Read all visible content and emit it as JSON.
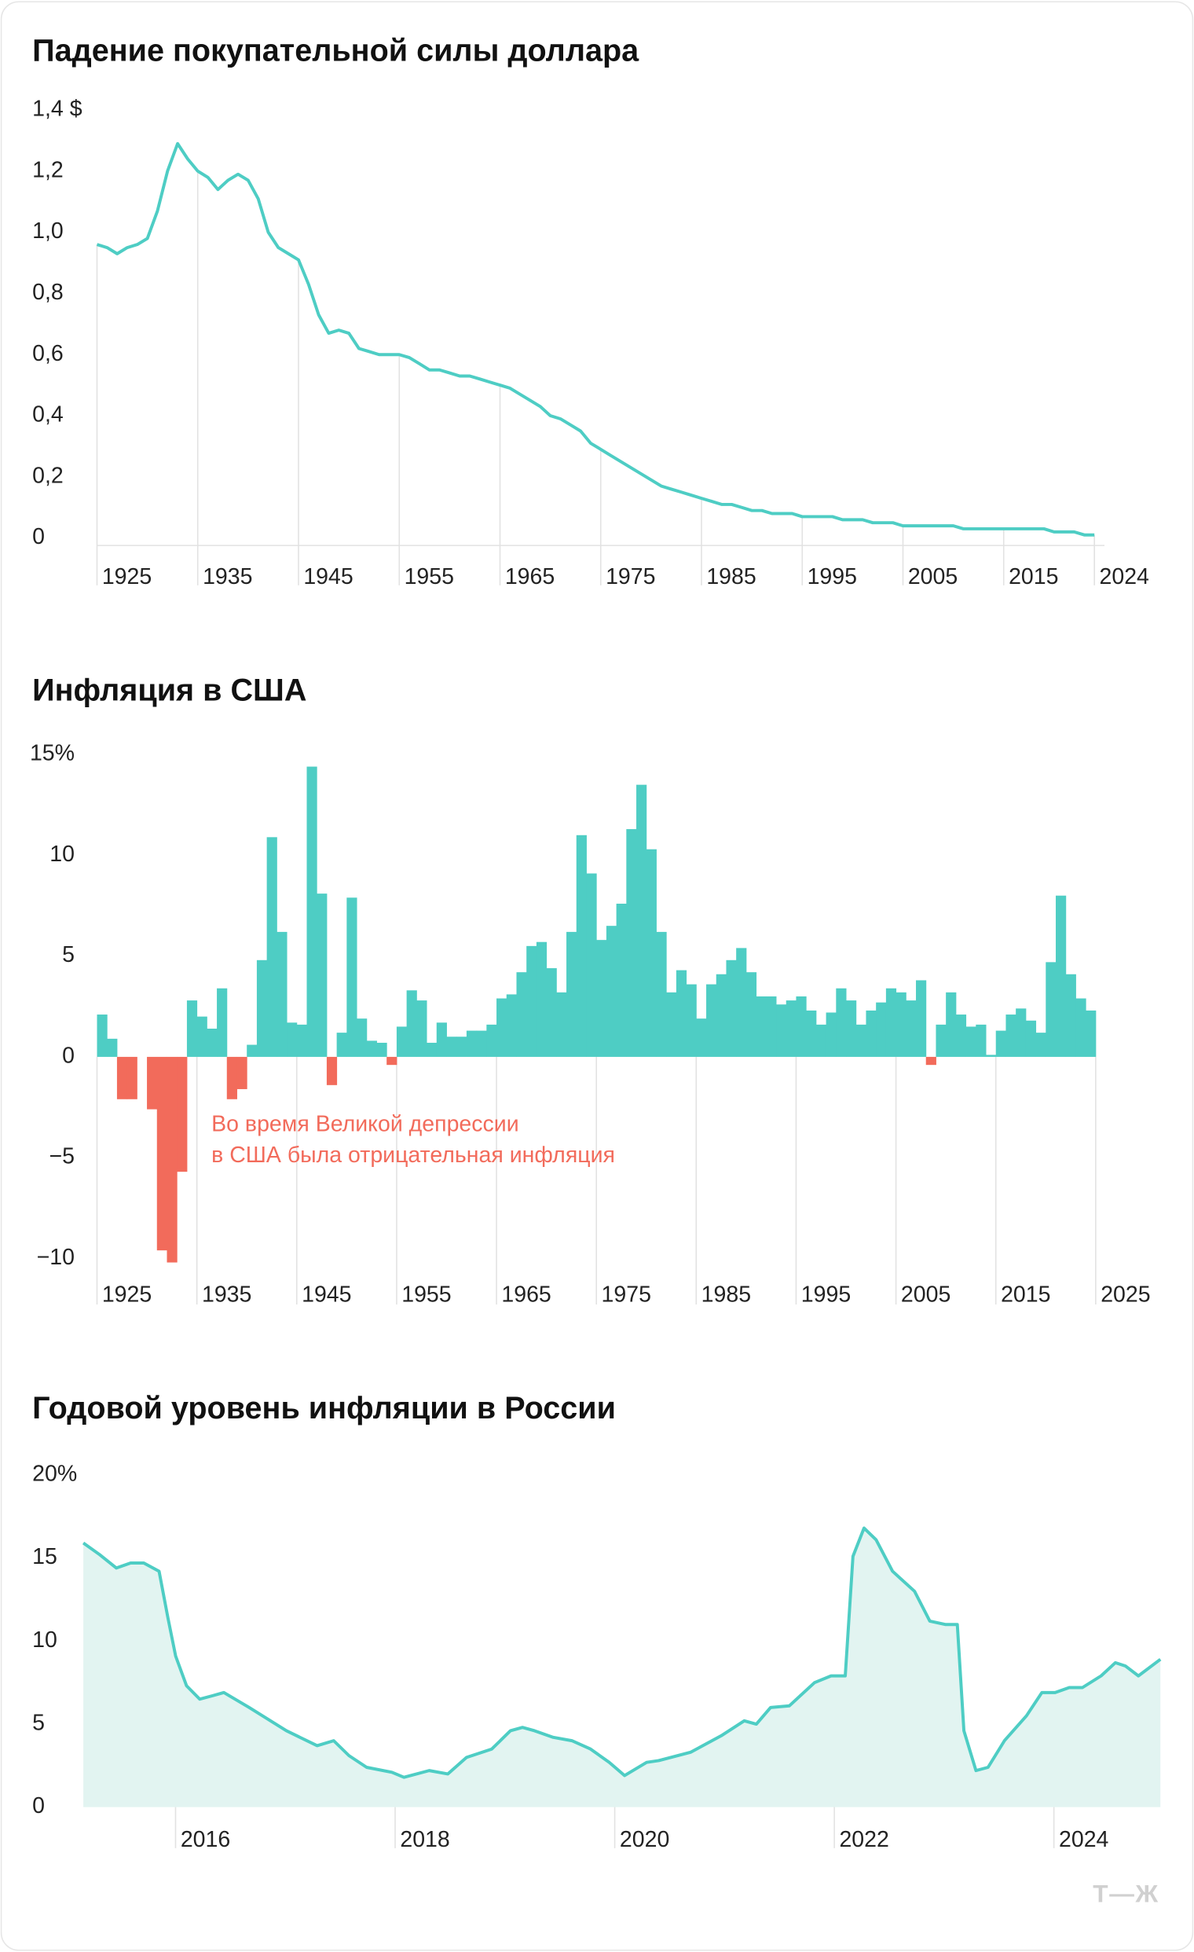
{
  "chart_data": [
    {
      "type": "line",
      "title": "Падение покупательной силы доллара",
      "color": "#4ecdc4",
      "x": [
        1925,
        1926,
        1927,
        1928,
        1929,
        1930,
        1931,
        1932,
        1933,
        1934,
        1935,
        1936,
        1937,
        1938,
        1939,
        1940,
        1941,
        1942,
        1943,
        1944,
        1945,
        1946,
        1947,
        1948,
        1949,
        1950,
        1951,
        1952,
        1953,
        1954,
        1955,
        1956,
        1957,
        1958,
        1959,
        1960,
        1961,
        1962,
        1963,
        1964,
        1965,
        1966,
        1967,
        1968,
        1969,
        1970,
        1971,
        1972,
        1973,
        1974,
        1975,
        1976,
        1977,
        1978,
        1979,
        1980,
        1981,
        1982,
        1983,
        1984,
        1985,
        1986,
        1987,
        1988,
        1989,
        1990,
        1991,
        1992,
        1993,
        1994,
        1995,
        1996,
        1997,
        1998,
        1999,
        2000,
        2001,
        2002,
        2003,
        2004,
        2005,
        2006,
        2007,
        2008,
        2009,
        2010,
        2011,
        2012,
        2013,
        2014,
        2015,
        2016,
        2017,
        2018,
        2019,
        2020,
        2021,
        2022,
        2023,
        2024
      ],
      "values": [
        0.96,
        0.95,
        0.93,
        0.95,
        0.96,
        0.98,
        1.07,
        1.2,
        1.29,
        1.24,
        1.2,
        1.18,
        1.14,
        1.17,
        1.19,
        1.17,
        1.11,
        1.0,
        0.95,
        0.93,
        0.91,
        0.83,
        0.73,
        0.67,
        0.68,
        0.67,
        0.62,
        0.61,
        0.6,
        0.6,
        0.6,
        0.59,
        0.57,
        0.55,
        0.55,
        0.54,
        0.53,
        0.53,
        0.52,
        0.51,
        0.5,
        0.49,
        0.47,
        0.45,
        0.43,
        0.4,
        0.39,
        0.37,
        0.35,
        0.31,
        0.29,
        0.27,
        0.25,
        0.23,
        0.21,
        0.19,
        0.17,
        0.16,
        0.15,
        0.14,
        0.13,
        0.12,
        0.11,
        0.11,
        0.1,
        0.09,
        0.09,
        0.08,
        0.08,
        0.08,
        0.07,
        0.07,
        0.07,
        0.07,
        0.06,
        0.06,
        0.06,
        0.05,
        0.05,
        0.05,
        0.04,
        0.04,
        0.04,
        0.04,
        0.04,
        0.04,
        0.03,
        0.03,
        0.03,
        0.03,
        0.03,
        0.03,
        0.03,
        0.03,
        0.03,
        0.02,
        0.02,
        0.02,
        0.01,
        0.01
      ],
      "xlim": [
        1925,
        2025
      ],
      "xticks": [
        1925,
        1935,
        1945,
        1955,
        1965,
        1975,
        1985,
        1995,
        2005,
        2015,
        2024
      ],
      "ylim": [
        0,
        1.4
      ],
      "yticks": [
        {
          "value": 1.4,
          "label": "1,4 $"
        },
        {
          "value": 1.2,
          "label": "1,2"
        },
        {
          "value": 1.0,
          "label": "1,0"
        },
        {
          "value": 0.8,
          "label": "0,8"
        },
        {
          "value": 0.6,
          "label": "0,6"
        },
        {
          "value": 0.4,
          "label": "0,4"
        },
        {
          "value": 0.2,
          "label": "0,2"
        },
        0
      ]
    },
    {
      "type": "bar",
      "title": "Инфляция в США",
      "color": "#4ecdc4",
      "negative_color": "#f26b5b",
      "x": [
        1925,
        1926,
        1927,
        1928,
        1929,
        1930,
        1931,
        1932,
        1933,
        1934,
        1935,
        1936,
        1937,
        1938,
        1939,
        1940,
        1941,
        1942,
        1943,
        1944,
        1945,
        1946,
        1947,
        1948,
        1949,
        1950,
        1951,
        1952,
        1953,
        1954,
        1955,
        1956,
        1957,
        1958,
        1959,
        1960,
        1961,
        1962,
        1963,
        1964,
        1965,
        1966,
        1967,
        1968,
        1969,
        1970,
        1971,
        1972,
        1973,
        1974,
        1975,
        1976,
        1977,
        1978,
        1979,
        1980,
        1981,
        1982,
        1983,
        1984,
        1985,
        1986,
        1987,
        1988,
        1989,
        1990,
        1991,
        1992,
        1993,
        1994,
        1995,
        1996,
        1997,
        1998,
        1999,
        2000,
        2001,
        2002,
        2003,
        2004,
        2005,
        2006,
        2007,
        2008,
        2009,
        2010,
        2011,
        2012,
        2013,
        2014,
        2015,
        2016,
        2017,
        2018,
        2019,
        2020,
        2021,
        2022,
        2023,
        2024
      ],
      "values": [
        2.1,
        0.9,
        -2.1,
        -2.1,
        0,
        -2.6,
        -9.6,
        -10.2,
        -5.7,
        2.8,
        2.0,
        1.4,
        3.4,
        -2.1,
        -1.6,
        0.6,
        4.8,
        10.9,
        6.2,
        1.7,
        1.6,
        14.4,
        8.1,
        -1.4,
        1.2,
        7.9,
        1.9,
        0.8,
        0.7,
        -0.4,
        1.5,
        3.3,
        2.8,
        0.7,
        1.7,
        1.0,
        1.0,
        1.3,
        1.3,
        1.6,
        2.9,
        3.1,
        4.2,
        5.5,
        5.7,
        4.4,
        3.2,
        6.2,
        11.0,
        9.1,
        5.8,
        6.5,
        7.6,
        11.3,
        13.5,
        10.3,
        6.2,
        3.2,
        4.3,
        3.6,
        1.9,
        3.6,
        4.1,
        4.8,
        5.4,
        4.2,
        3.0,
        3.0,
        2.6,
        2.8,
        3.0,
        2.3,
        1.6,
        2.2,
        3.4,
        2.8,
        1.6,
        2.3,
        2.7,
        3.4,
        3.2,
        2.8,
        3.8,
        -0.4,
        1.6,
        3.2,
        2.1,
        1.5,
        1.6,
        0.1,
        1.3,
        2.1,
        2.4,
        1.8,
        1.2,
        4.7,
        8.0,
        4.1,
        2.9,
        2.3
      ],
      "xlim": [
        1925,
        2026
      ],
      "xticks": [
        1925,
        1935,
        1945,
        1955,
        1965,
        1975,
        1985,
        1995,
        2005,
        2015,
        2025
      ],
      "ylim": [
        -10,
        15
      ],
      "yticks": [
        {
          "value": 15,
          "label": "15%"
        },
        10,
        5,
        0,
        {
          "value": -5,
          "label": "−5"
        },
        {
          "value": -10,
          "label": "−10"
        }
      ],
      "annotation": [
        "Во время Великой депрессии",
        "в США была отрицательная инфляция"
      ]
    },
    {
      "type": "area",
      "title": "Годовой уровень инфляции в России",
      "color": "#4ecdc4",
      "fill": "#e2f4f1",
      "x": [
        2015.16,
        2015.31,
        2015.46,
        2015.59,
        2015.71,
        2015.85,
        2015.93,
        2016.0,
        2016.1,
        2016.22,
        2016.33,
        2016.44,
        2016.67,
        2017.01,
        2017.29,
        2017.44,
        2017.58,
        2017.74,
        2017.97,
        2018.08,
        2018.31,
        2018.48,
        2018.65,
        2018.88,
        2019.05,
        2019.16,
        2019.27,
        2019.44,
        2019.61,
        2019.78,
        2019.95,
        2020.09,
        2020.29,
        2020.4,
        2020.69,
        2020.97,
        2021.18,
        2021.29,
        2021.42,
        2021.59,
        2021.82,
        2021.97,
        2022.1,
        2022.17,
        2022.27,
        2022.38,
        2022.53,
        2022.73,
        2022.87,
        2023.01,
        2023.12,
        2023.18,
        2023.29,
        2023.4,
        2023.55,
        2023.75,
        2023.89,
        2024.01,
        2024.14,
        2024.26,
        2024.43,
        2024.56,
        2024.65,
        2024.77,
        2024.97
      ],
      "values": [
        15.9,
        15.2,
        14.4,
        14.7,
        14.7,
        14.2,
        11.4,
        9.1,
        7.3,
        6.5,
        6.7,
        6.9,
        6.0,
        4.6,
        3.7,
        4.0,
        3.1,
        2.4,
        2.1,
        1.8,
        2.2,
        2.0,
        3.0,
        3.5,
        4.6,
        4.8,
        4.6,
        4.2,
        4.0,
        3.5,
        2.7,
        1.9,
        2.7,
        2.8,
        3.3,
        4.3,
        5.2,
        5.0,
        6.0,
        6.1,
        7.5,
        7.9,
        7.9,
        15.1,
        16.8,
        16.1,
        14.2,
        13.0,
        11.2,
        11.0,
        11.0,
        4.6,
        2.2,
        2.4,
        4.0,
        5.5,
        6.9,
        6.9,
        7.2,
        7.2,
        7.9,
        8.7,
        8.5,
        7.9,
        8.9
      ],
      "xlim": [
        2015.16,
        2024.97
      ],
      "xticks": [
        2016,
        2018,
        2020,
        2022,
        2024
      ],
      "ylim": [
        0,
        20
      ],
      "yticks": [
        {
          "value": 20,
          "label": "20%"
        },
        15,
        10,
        5,
        0
      ]
    }
  ],
  "logo": "Т—Ж"
}
